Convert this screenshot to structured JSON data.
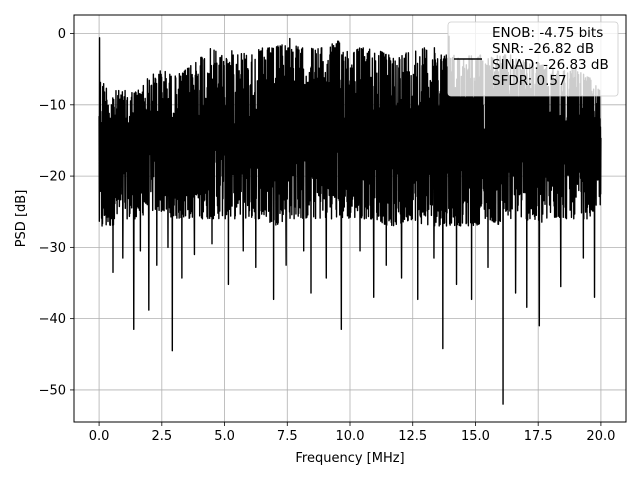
{
  "chart_data": {
    "type": "line",
    "title": "",
    "xlabel": "Frequency [MHz]",
    "ylabel": "PSD [dB]",
    "xlim": [
      -1.0,
      21.0
    ],
    "ylim": [
      -54.5,
      2.6
    ],
    "xticks": [
      0.0,
      2.5,
      5.0,
      7.5,
      10.0,
      12.5,
      15.0,
      17.5,
      20.0
    ],
    "xtick_labels": [
      "0.0",
      "2.5",
      "5.0",
      "7.5",
      "10.0",
      "12.5",
      "15.0",
      "17.5",
      "20.0"
    ],
    "yticks": [
      0,
      -10,
      -20,
      -30,
      -40,
      -50
    ],
    "ytick_labels": [
      "0",
      "−10",
      "−20",
      "−30",
      "−40",
      "−50"
    ],
    "grid": true,
    "legend_position": "top-right",
    "line_color": "#000000",
    "band": {
      "x": [
        0.0,
        0.5,
        1.0,
        1.5,
        2.0,
        2.5,
        3.0,
        3.5,
        4.0,
        4.5,
        5.0,
        5.5,
        6.0,
        6.5,
        7.0,
        7.5,
        8.0,
        8.5,
        9.0,
        9.5,
        10.0,
        10.5,
        11.0,
        11.5,
        12.0,
        12.5,
        13.0,
        13.5,
        14.0,
        14.5,
        15.0,
        15.5,
        16.0,
        16.5,
        17.0,
        17.5,
        18.0,
        18.5,
        19.0,
        19.5,
        20.0
      ],
      "upper": [
        -6,
        -8,
        -8,
        -8,
        -6,
        -5,
        -6,
        -5,
        -3,
        -2,
        -3,
        -2,
        -3,
        -2,
        -2,
        -1,
        -2,
        -2,
        -2,
        -1,
        -2,
        -2,
        -2,
        -3,
        -3,
        -2,
        -2,
        -2,
        -3,
        -3,
        -3,
        -3,
        -3,
        -3,
        -4,
        -4,
        -5,
        -5,
        -5,
        -6,
        -8
      ],
      "lower": [
        -28,
        -27,
        -26,
        -26,
        -25,
        -25,
        -26,
        -26,
        -26,
        -26,
        -26,
        -26,
        -26,
        -26,
        -27,
        -26,
        -26,
        -26,
        -26,
        -26,
        -26,
        -26,
        -26,
        -27,
        -27,
        -26,
        -27,
        -27,
        -27,
        -27,
        -27,
        -26,
        -27,
        -26,
        -26,
        -27,
        -26,
        -26,
        -26,
        -26,
        -24
      ]
    },
    "peaks": [
      {
        "x": 0.02,
        "y": -0.6
      },
      {
        "x": 7.6,
        "y": -0.7
      },
      {
        "x": 13.95,
        "y": -0.4
      }
    ],
    "dips": [
      {
        "x": 0.55,
        "y": -33.5
      },
      {
        "x": 0.95,
        "y": -31.5
      },
      {
        "x": 1.38,
        "y": -41.5
      },
      {
        "x": 1.65,
        "y": -30.5
      },
      {
        "x": 1.98,
        "y": -38.8
      },
      {
        "x": 2.3,
        "y": -32.5
      },
      {
        "x": 2.75,
        "y": -30.0
      },
      {
        "x": 2.92,
        "y": -44.5
      },
      {
        "x": 3.3,
        "y": -34.3
      },
      {
        "x": 3.8,
        "y": -31.0
      },
      {
        "x": 4.5,
        "y": -29.5
      },
      {
        "x": 5.15,
        "y": -35.2
      },
      {
        "x": 5.75,
        "y": -30.5
      },
      {
        "x": 6.25,
        "y": -32.8
      },
      {
        "x": 6.95,
        "y": -37.3
      },
      {
        "x": 7.45,
        "y": -32.5
      },
      {
        "x": 8.15,
        "y": -30.5
      },
      {
        "x": 8.45,
        "y": -36.4
      },
      {
        "x": 9.05,
        "y": -34.3
      },
      {
        "x": 9.65,
        "y": -41.5
      },
      {
        "x": 10.4,
        "y": -30.5
      },
      {
        "x": 10.95,
        "y": -37.0
      },
      {
        "x": 11.45,
        "y": -32.5
      },
      {
        "x": 12.05,
        "y": -34.3
      },
      {
        "x": 12.7,
        "y": -37.3
      },
      {
        "x": 13.35,
        "y": -31.5
      },
      {
        "x": 13.7,
        "y": -44.2
      },
      {
        "x": 14.25,
        "y": -35.2
      },
      {
        "x": 14.85,
        "y": -37.3
      },
      {
        "x": 15.5,
        "y": -32.8
      },
      {
        "x": 16.1,
        "y": -52.0
      },
      {
        "x": 16.6,
        "y": -36.4
      },
      {
        "x": 17.05,
        "y": -38.4
      },
      {
        "x": 17.55,
        "y": -41.0
      },
      {
        "x": 18.4,
        "y": -35.5
      },
      {
        "x": 19.3,
        "y": -31.5
      },
      {
        "x": 19.75,
        "y": -37.0
      }
    ],
    "legend": {
      "lines": [
        "ENOB: -4.75 bits",
        "SNR: -26.82 dB",
        "SINAD: -26.83 dB",
        "SFDR: 0.57"
      ]
    }
  }
}
